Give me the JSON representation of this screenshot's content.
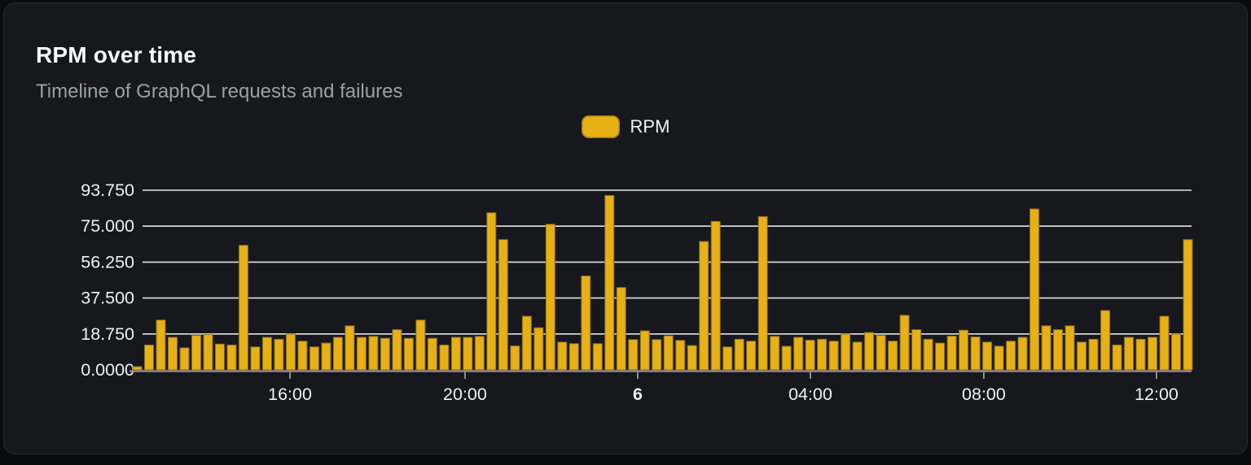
{
  "card": {
    "title": "RPM over time",
    "subtitle": "Timeline of GraphQL requests and failures"
  },
  "legend": {
    "items": [
      {
        "label": "RPM",
        "color": "#e7b015"
      }
    ]
  },
  "colors": {
    "page_background": "#0a0b0e",
    "card_background": "#16181d",
    "card_border": "#262931",
    "title_text": "#fafbfc",
    "subtitle_text": "#9aa0a8",
    "gridline": "#e2e4e9",
    "axis_line": "#8b8e94",
    "tick_label": "#eff0f2",
    "bar_fill": "#e7b015",
    "bar_stroke": "#8a6b1c"
  },
  "chart_data": {
    "type": "bar",
    "title": "RPM over time",
    "subtitle": "Timeline of GraphQL requests and failures",
    "xlabel": "",
    "ylabel": "",
    "ylim": [
      0,
      95
    ],
    "grid": true,
    "legend_position": "top-center",
    "y_ticks": [
      {
        "value": 0,
        "label": "0.0000"
      },
      {
        "value": 18.75,
        "label": "18.750"
      },
      {
        "value": 37.5,
        "label": "37.500"
      },
      {
        "value": 56.25,
        "label": "56.250"
      },
      {
        "value": 75,
        "label": "75.000"
      },
      {
        "value": 93.75,
        "label": "93.750"
      }
    ],
    "x_ticks": [
      {
        "label": "16:00",
        "pos": 0.1485,
        "bold": false
      },
      {
        "label": "20:00",
        "pos": 0.3138,
        "bold": false
      },
      {
        "label": "6",
        "pos": 0.4769,
        "bold": true
      },
      {
        "label": "04:00",
        "pos": 0.64,
        "bold": false
      },
      {
        "label": "08:00",
        "pos": 0.8038,
        "bold": false
      },
      {
        "label": "12:00",
        "pos": 0.9669,
        "bold": false
      }
    ],
    "series": [
      {
        "name": "RPM",
        "values": [
          1.7,
          13,
          26,
          17,
          11.5,
          18,
          18.5,
          13.5,
          13,
          65,
          12,
          17,
          16,
          18.7,
          15,
          12,
          14,
          17,
          23,
          17,
          17.5,
          16.5,
          21,
          16.5,
          26,
          16.5,
          13,
          17,
          17,
          17.5,
          82,
          68,
          12.5,
          28,
          22,
          76,
          14.5,
          13.7,
          49,
          13.7,
          91,
          43,
          15.8,
          20.4,
          15.8,
          17.8,
          15.4,
          12.7,
          67,
          77.5,
          12,
          16,
          15,
          80,
          17.5,
          12.3,
          17,
          15.5,
          16,
          15,
          18.7,
          14.5,
          19.5,
          18,
          15,
          28.5,
          21,
          16,
          14,
          17.6,
          20.7,
          17.2,
          14.5,
          12.4,
          15,
          17,
          84,
          23,
          21,
          23,
          14.5,
          16,
          31,
          13,
          17,
          16,
          17,
          28,
          18.7,
          68
        ]
      }
    ]
  }
}
